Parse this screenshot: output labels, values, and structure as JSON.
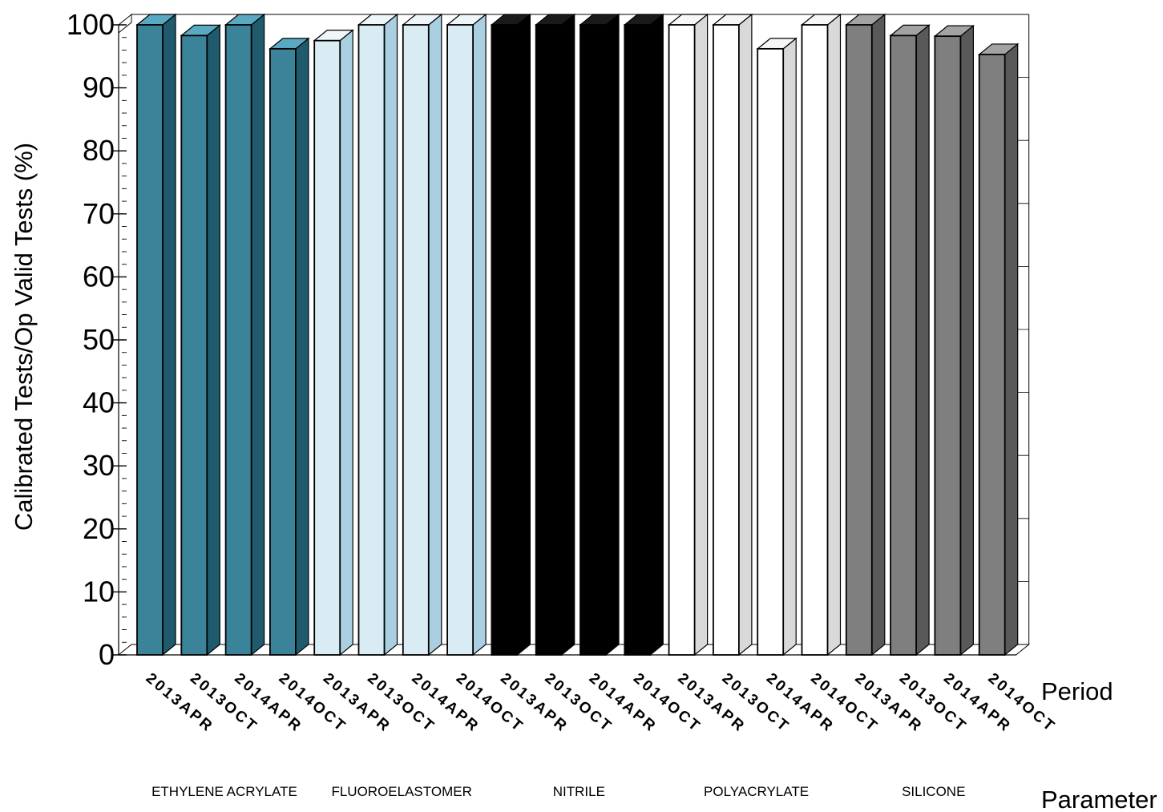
{
  "chart_data": {
    "type": "bar",
    "ylabel": "Calibrated Tests/Op Valid Tests (%)",
    "xlabel_period": "Period",
    "xlabel_parameter": "Parameter",
    "ylim": [
      0,
      100
    ],
    "y_major_step": 10,
    "y_minor_step": 2,
    "periods": [
      "2013APR",
      "2013OCT",
      "2014APR",
      "2014OCT"
    ],
    "groups": [
      {
        "name": "ETHYLENE ACRYLATE",
        "values": [
          100,
          98.3,
          100,
          96.2
        ],
        "front_color": "#3b8398",
        "side_color": "#1f5b6d",
        "top_color": "#5aa9c2"
      },
      {
        "name": "FLUOROELASTOMER",
        "values": [
          97.5,
          100,
          100,
          100
        ],
        "front_color": "#d9ebf3",
        "side_color": "#a9cfe0",
        "top_color": "#eef6fa"
      },
      {
        "name": "NITRILE",
        "values": [
          100,
          100,
          100,
          100
        ],
        "front_color": "#000000",
        "side_color": "#000000",
        "top_color": "#1a1a1a"
      },
      {
        "name": "POLYACRYLATE",
        "values": [
          100,
          100,
          96.2,
          100
        ],
        "front_color": "#ffffff",
        "side_color": "#d9d9d9",
        "top_color": "#f7f7f7"
      },
      {
        "name": "SILICONE",
        "values": [
          100,
          98.3,
          98.2,
          95.3
        ],
        "front_color": "#7f7f7f",
        "side_color": "#595959",
        "top_color": "#a3a3a3"
      }
    ]
  }
}
